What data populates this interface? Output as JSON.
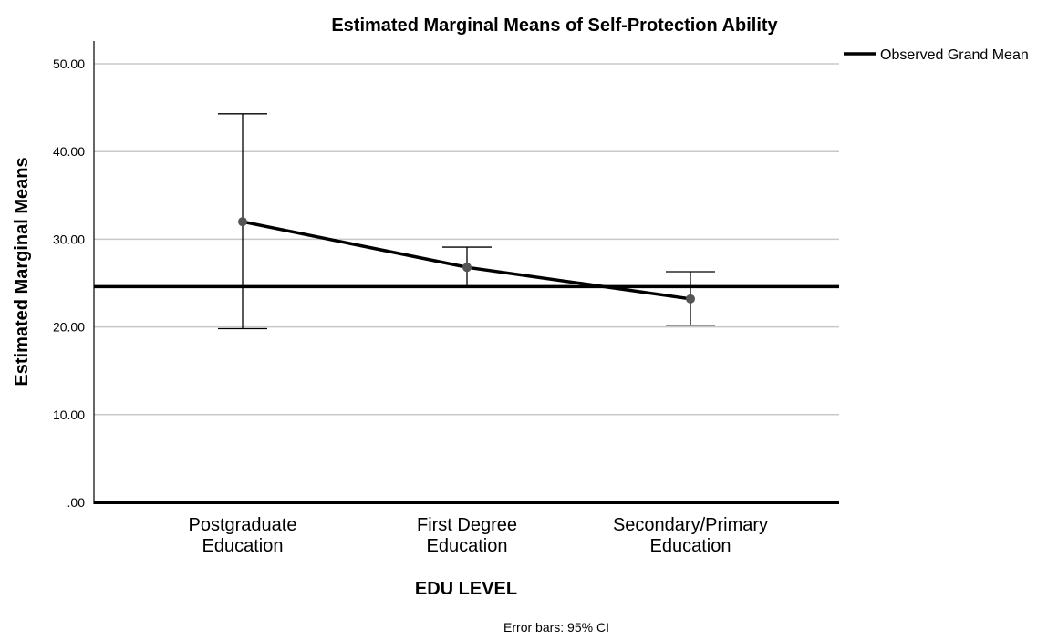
{
  "chart_data": {
    "type": "line",
    "title": "Estimated Marginal Means of Self-Protection Ability",
    "xlabel": "EDU LEVEL",
    "ylabel": "Estimated Marginal Means",
    "footnote": "Error bars: 95% CI",
    "categories": [
      [
        "Postgraduate",
        "Education"
      ],
      [
        "First Degree",
        "Education"
      ],
      [
        "Secondary/Primary",
        "Education"
      ]
    ],
    "yticks": [
      ".00",
      "10.00",
      "20.00",
      "30.00",
      "40.00",
      "50.00"
    ],
    "ylim": [
      0,
      52.5
    ],
    "grid": true,
    "legend": {
      "position": "top-right",
      "entries": [
        "Observed Grand Mean"
      ]
    },
    "series": [
      {
        "values": [
          32.0,
          26.8,
          23.2
        ],
        "ci_lower": [
          19.8,
          24.5,
          20.2
        ],
        "ci_upper": [
          44.3,
          29.1,
          26.3
        ],
        "color": "#000000",
        "marker_color": "#555555"
      }
    ],
    "reference_lines": [
      {
        "name": "Observed Grand Mean",
        "value": 24.6,
        "color": "#000000"
      }
    ]
  }
}
